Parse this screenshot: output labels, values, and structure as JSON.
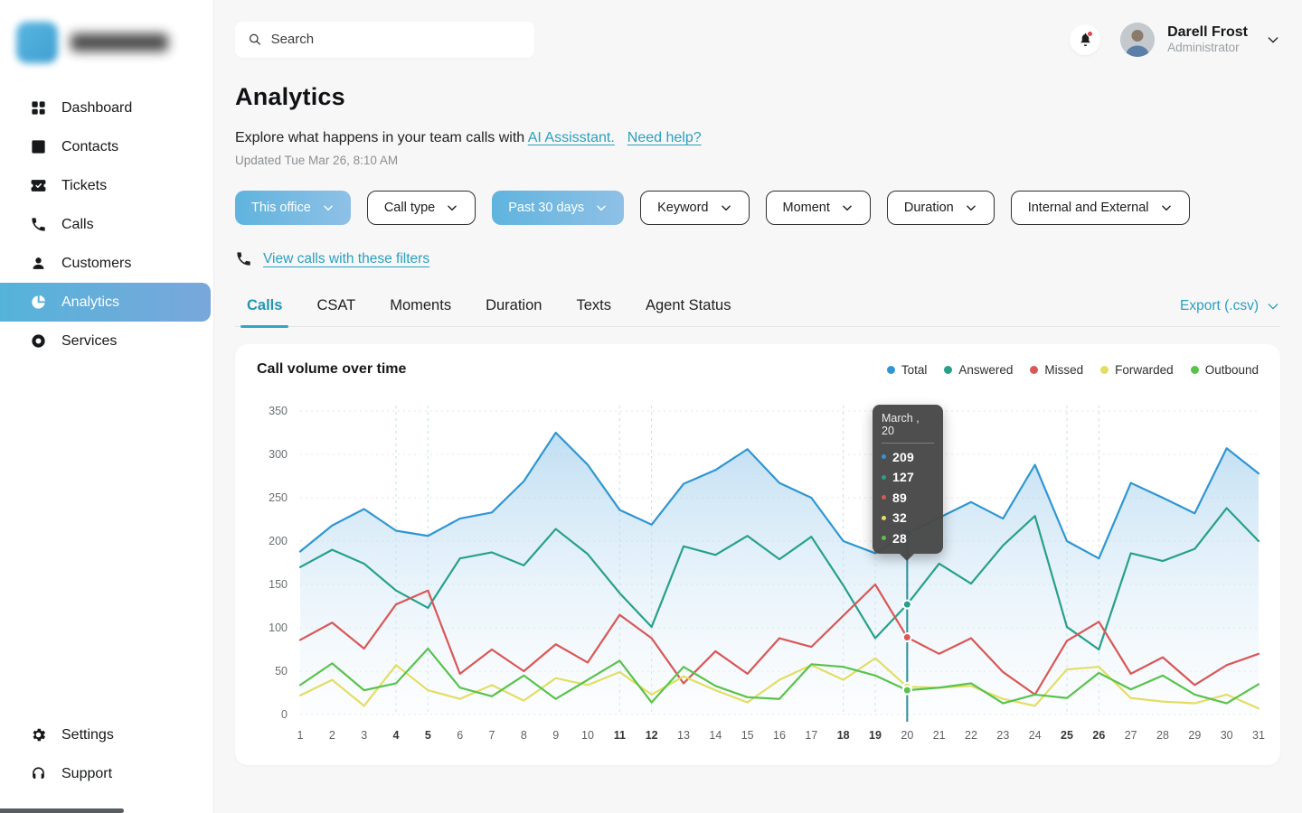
{
  "sidebar": {
    "nav": [
      {
        "id": "dashboard",
        "label": "Dashboard",
        "active": false
      },
      {
        "id": "contacts",
        "label": "Contacts",
        "active": false
      },
      {
        "id": "tickets",
        "label": "Tickets",
        "active": false
      },
      {
        "id": "calls",
        "label": "Calls",
        "active": false
      },
      {
        "id": "customers",
        "label": "Customers",
        "active": false
      },
      {
        "id": "analytics",
        "label": "Analytics",
        "active": true
      },
      {
        "id": "services",
        "label": "Services",
        "active": false
      }
    ],
    "footer_nav": [
      {
        "id": "settings",
        "label": "Settings",
        "active": false
      },
      {
        "id": "support",
        "label": "Support",
        "active": false
      }
    ]
  },
  "topbar": {
    "search_placeholder": "Search",
    "user": {
      "name": "Darell Frost",
      "role": "Administrator"
    }
  },
  "header": {
    "title": "Analytics",
    "subtitle_prefix": "Explore what happens in your team calls with ",
    "subtitle_link1": "AI Assisstant.",
    "subtitle_link2": "Need help?",
    "updated": "Updated Tue Mar 26, 8:10 AM"
  },
  "filters": [
    {
      "label": "This office",
      "active": true
    },
    {
      "label": "Call type",
      "active": false
    },
    {
      "label": "Past 30 days",
      "active": true
    },
    {
      "label": "Keyword",
      "active": false
    },
    {
      "label": "Moment",
      "active": false
    },
    {
      "label": "Duration",
      "active": false
    },
    {
      "label": "Internal and External",
      "active": false
    }
  ],
  "view_calls_link": "View calls with these filters",
  "tabs": [
    {
      "label": "Calls",
      "active": true
    },
    {
      "label": "CSAT",
      "active": false
    },
    {
      "label": "Moments",
      "active": false
    },
    {
      "label": "Duration",
      "active": false
    },
    {
      "label": "Texts",
      "active": false
    },
    {
      "label": "Agent Status",
      "active": false
    }
  ],
  "export_label": "Export (.csv)",
  "chart_data": {
    "type": "line",
    "title": "Call volume over time",
    "x": [
      1,
      2,
      3,
      4,
      5,
      6,
      7,
      8,
      9,
      10,
      11,
      12,
      13,
      14,
      15,
      16,
      17,
      18,
      19,
      20,
      21,
      22,
      23,
      24,
      25,
      26,
      27,
      28,
      29,
      30,
      31
    ],
    "bold_x": [
      4,
      5,
      11,
      12,
      18,
      19,
      25,
      26
    ],
    "ylim": [
      0,
      350
    ],
    "yticks": [
      0,
      50,
      100,
      150,
      200,
      250,
      300,
      350
    ],
    "grid": "dashed",
    "legend_position": "top-right",
    "marker_color": "#2a8f9f",
    "area_fill_top": "#9fcdec",
    "area_fill_bottom": "#f2f8fd",
    "series": [
      {
        "name": "Total",
        "color": "#2f96d3",
        "fill": true,
        "values": [
          188,
          218,
          237,
          212,
          206,
          226,
          233,
          269,
          325,
          288,
          236,
          219,
          266,
          282,
          306,
          267,
          250,
          200,
          186,
          209,
          227,
          245,
          226,
          288,
          200,
          180,
          267,
          250,
          232,
          307,
          278
        ]
      },
      {
        "name": "Answered",
        "color": "#27a08a",
        "fill": false,
        "values": [
          170,
          190,
          174,
          143,
          123,
          180,
          187,
          172,
          214,
          185,
          140,
          101,
          194,
          184,
          206,
          179,
          205,
          149,
          88,
          127,
          174,
          151,
          195,
          229,
          101,
          75,
          186,
          177,
          191,
          238,
          200
        ]
      },
      {
        "name": "Missed",
        "color": "#d95757",
        "fill": false,
        "values": [
          86,
          106,
          76,
          127,
          143,
          47,
          75,
          50,
          81,
          60,
          115,
          88,
          36,
          73,
          47,
          88,
          78,
          114,
          150,
          89,
          70,
          88,
          49,
          23,
          85,
          107,
          47,
          66,
          34,
          57,
          70
        ]
      },
      {
        "name": "Forwarded",
        "color": "#e2de64",
        "fill": false,
        "values": [
          22,
          40,
          10,
          57,
          28,
          18,
          34,
          16,
          42,
          34,
          49,
          23,
          44,
          28,
          14,
          40,
          57,
          40,
          65,
          32,
          31,
          33,
          18,
          10,
          52,
          55,
          19,
          15,
          13,
          23,
          7
        ]
      },
      {
        "name": "Outbound",
        "color": "#58c34b",
        "fill": false,
        "values": [
          34,
          59,
          28,
          36,
          76,
          31,
          21,
          45,
          18,
          40,
          62,
          14,
          55,
          33,
          20,
          18,
          58,
          55,
          45,
          28,
          31,
          36,
          13,
          23,
          19,
          48,
          29,
          45,
          23,
          13,
          35
        ]
      }
    ],
    "tooltip": {
      "day": 20,
      "title": "March , 20",
      "values": [
        209,
        127,
        89,
        32,
        28
      ]
    }
  }
}
